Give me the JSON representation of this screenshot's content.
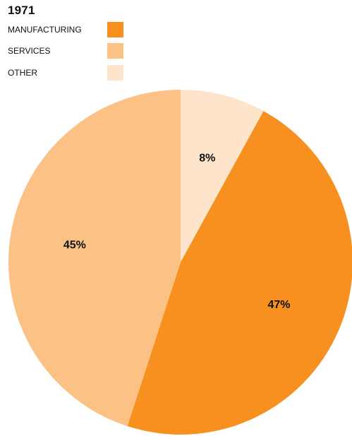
{
  "chart_data": {
    "type": "pie",
    "title": "1971",
    "categories": [
      "MANUFACTURING",
      "SERVICES",
      "OTHER"
    ],
    "values": [
      47,
      45,
      8
    ],
    "value_labels": [
      "47%",
      "45%",
      "8%"
    ],
    "colors": [
      "#F7901E",
      "#FCC185",
      "#FEE4CA"
    ],
    "legend_position": "top-left",
    "slice_order_clockwise_from_top": [
      "OTHER",
      "MANUFACTURING",
      "SERVICES"
    ]
  }
}
